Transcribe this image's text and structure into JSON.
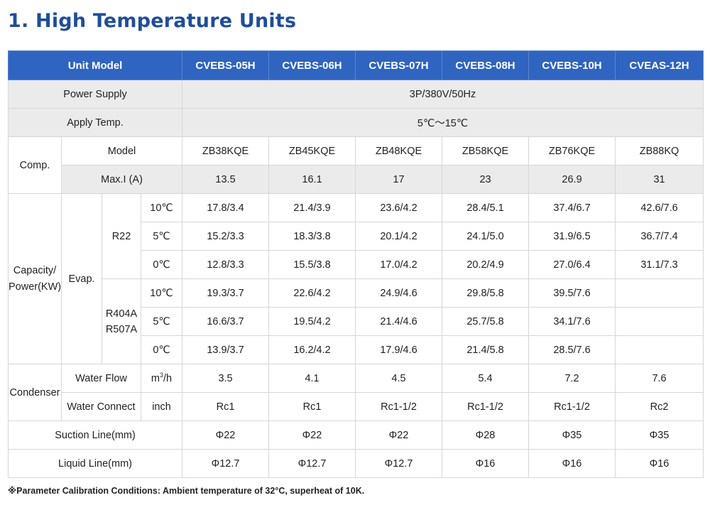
{
  "title": "1. High Temperature Units",
  "header": {
    "label": "Unit Model",
    "models": [
      "CVEBS-05H",
      "CVEBS-06H",
      "CVEBS-07H",
      "CVEBS-08H",
      "CVEBS-10H",
      "CVEAS-12H"
    ]
  },
  "power_supply": {
    "label": "Power Supply",
    "value": "3P/380V/50Hz"
  },
  "apply_temp": {
    "label": "Apply Temp.",
    "value": "5℃～15℃"
  },
  "comp": {
    "label": "Comp.",
    "model_label": "Model",
    "models": [
      "ZB38KQE",
      "ZB45KQE",
      "ZB48KQE",
      "ZB58KQE",
      "ZB76KQE",
      "ZB88KQ"
    ],
    "maxi_label": "Max.I (A)",
    "maxi": [
      "13.5",
      "16.1",
      "17",
      "23",
      "26.9",
      "31"
    ]
  },
  "capacity": {
    "label_line1": "Capacity/",
    "label_line2": "Power(KW)",
    "evap_label": "Evap.",
    "r22": {
      "label": "R22",
      "rows": [
        {
          "temp": "10℃",
          "values": [
            "17.8/3.4",
            "21.4/3.9",
            "23.6/4.2",
            "28.4/5.1",
            "37.4/6.7",
            "42.6/7.6"
          ]
        },
        {
          "temp": "5℃",
          "values": [
            "15.2/3.3",
            "18.3/3.8",
            "20.1/4.2",
            "24.1/5.0",
            "31.9/6.5",
            "36.7/7.4"
          ]
        },
        {
          "temp": "0℃",
          "values": [
            "12.8/3.3",
            "15.5/3.8",
            "17.0/4.2",
            "20.2/4.9",
            "27.0/6.4",
            "31.1/7.3"
          ]
        }
      ]
    },
    "r404a": {
      "label_line1": "R404A",
      "label_line2": "R507A",
      "rows": [
        {
          "temp": "10℃",
          "values": [
            "19.3/3.7",
            "22.6/4.2",
            "24.9/4.6",
            "29.8/5.8",
            "39.5/7.6",
            ""
          ]
        },
        {
          "temp": "5℃",
          "values": [
            "16.6/3.7",
            "19.5/4.2",
            "21.4/4.6",
            "25.7/5.8",
            "34.1/7.6",
            ""
          ]
        },
        {
          "temp": "0℃",
          "values": [
            "13.9/3.7",
            "16.2/4.2",
            "17.9/4.6",
            "21.4/5.8",
            "28.5/7.6",
            ""
          ]
        }
      ]
    }
  },
  "condenser": {
    "label": "Condenser",
    "water_flow_label": "Water Flow",
    "water_flow_unit_base": "m",
    "water_flow_unit_sup": "3",
    "water_flow_unit_tail": "/h",
    "water_flow": [
      "3.5",
      "4.1",
      "4.5",
      "5.4",
      "7.2",
      "7.6"
    ],
    "water_connect_label": "Water Connect",
    "water_connect_unit": "inch",
    "water_connect": [
      "Rc1",
      "Rc1",
      "Rc1-1/2",
      "Rc1-1/2",
      "Rc1-1/2",
      "Rc2"
    ]
  },
  "suction": {
    "label": "Suction Line(mm)",
    "values": [
      "Φ22",
      "Φ22",
      "Φ22",
      "Φ28",
      "Φ35",
      "Φ35"
    ]
  },
  "liquid": {
    "label": "Liquid Line(mm)",
    "values": [
      "Φ12.7",
      "Φ12.7",
      "Φ12.7",
      "Φ16",
      "Φ16",
      "Φ16"
    ]
  },
  "note": "※Parameter Calibration Conditions: Ambient temperature of 32°C, superheat of 10K."
}
